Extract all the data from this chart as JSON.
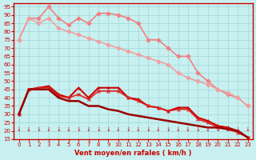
{
  "title": "",
  "xlabel": "Vent moyen/en rafales ( km/h )",
  "ylabel": "",
  "background_color": "#c8f0f0",
  "grid_color": "#aadddd",
  "x_ticks": [
    0,
    1,
    2,
    3,
    4,
    5,
    6,
    7,
    8,
    9,
    10,
    11,
    12,
    13,
    14,
    15,
    16,
    17,
    18,
    19,
    20,
    21,
    22,
    23
  ],
  "ylim": [
    15,
    97
  ],
  "yticks": [
    15,
    20,
    25,
    30,
    35,
    40,
    45,
    50,
    55,
    60,
    65,
    70,
    75,
    80,
    85,
    90,
    95
  ],
  "lines": [
    {
      "label": "line1_light",
      "color": "#f08080",
      "lw": 1.2,
      "marker": "D",
      "markersize": 2.5,
      "y": [
        75,
        88,
        88,
        95,
        88,
        84,
        88,
        85,
        91,
        91,
        90,
        88,
        85,
        75,
        75,
        70,
        65,
        65,
        55,
        50,
        45,
        42,
        40,
        35
      ]
    },
    {
      "label": "line2_light",
      "color": "#f0a0a0",
      "lw": 1.2,
      "marker": "D",
      "markersize": 2.5,
      "y": [
        75,
        88,
        85,
        88,
        82,
        80,
        78,
        76,
        74,
        72,
        70,
        68,
        66,
        64,
        62,
        60,
        55,
        52,
        50,
        48,
        45,
        43,
        40,
        35
      ]
    },
    {
      "label": "line3_red_main",
      "color": "#cc0000",
      "lw": 1.5,
      "marker": "+",
      "markersize": 3.5,
      "y": [
        30,
        45,
        46,
        47,
        42,
        40,
        46,
        40,
        46,
        46,
        46,
        40,
        39,
        35,
        34,
        32,
        34,
        34,
        28,
        26,
        23,
        22,
        20,
        16
      ]
    },
    {
      "label": "line4_red",
      "color": "#dd2222",
      "lw": 1.2,
      "marker": "x",
      "markersize": 3,
      "y": [
        30,
        45,
        46,
        46,
        41,
        40,
        42,
        39,
        44,
        44,
        44,
        40,
        38,
        35,
        34,
        32,
        33,
        33,
        27,
        25,
        22,
        21,
        19,
        16
      ]
    },
    {
      "label": "line5_dark",
      "color": "#990000",
      "lw": 1.8,
      "marker": "none",
      "markersize": 0,
      "y": [
        30,
        45,
        45,
        45,
        40,
        38,
        38,
        35,
        35,
        33,
        32,
        30,
        29,
        28,
        27,
        26,
        25,
        24,
        23,
        22,
        22,
        21,
        20,
        16
      ]
    }
  ]
}
